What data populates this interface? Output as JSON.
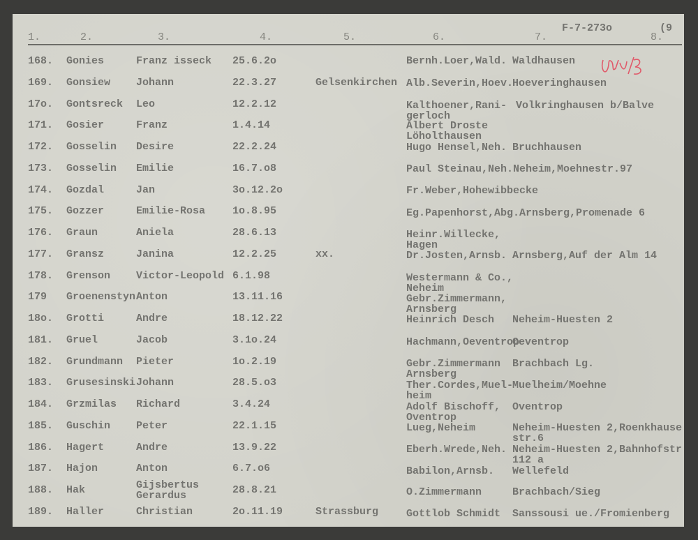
{
  "document_ref": "F-7-273o",
  "page_number": "(9",
  "handwritten_mark": "red initials",
  "column_headers": [
    "1.",
    "2.",
    "3.",
    "4.",
    "5.",
    "6.",
    "7.",
    "8."
  ],
  "rows": [
    {
      "num": "168.",
      "surname": "Gonies",
      "first": "Franz isseck",
      "date": "25.6.2o",
      "place": "",
      "col6": [
        "Bernh.Loer,Wald."
      ],
      "col7": [
        "Waldhausen"
      ]
    },
    {
      "num": "169.",
      "surname": "Gonsiew",
      "first": "Johann",
      "date": "22.3.27",
      "place": "Gelsenkirchen",
      "col6": [
        "Alb.Severin,Hoev."
      ],
      "col7": [
        "Hoeveringhausen"
      ]
    },
    {
      "num": "17o.",
      "surname": "Gontsreck",
      "first": "Leo",
      "date": "12.2.12",
      "place": "",
      "col6": [
        "Kalthoener,Rani-",
        "gerloch"
      ],
      "col7": [
        "Volkringhausen b/Balve"
      ]
    },
    {
      "num": "171.",
      "surname": "Gosier",
      "first": "Franz",
      "date": "1.4.14",
      "place": "",
      "col6": [
        "Albert Droste",
        "Löholthausen"
      ],
      "col7": []
    },
    {
      "num": "172.",
      "surname": "Gosselin",
      "first": "Desire",
      "date": "22.2.24",
      "place": "",
      "col6": [
        "Hugo Hensel,Neh."
      ],
      "col7": [
        "Bruchhausen"
      ]
    },
    {
      "num": "173.",
      "surname": "Gosselin",
      "first": "Emilie",
      "date": "16.7.o8",
      "place": "",
      "col6": [
        "Paul Steinau,Neh.Neheim,Moehnestr.97"
      ],
      "col7": []
    },
    {
      "num": "174.",
      "surname": "Gozdal",
      "first": "Jan",
      "date": "3o.12.2o",
      "place": "",
      "col6": [
        "Fr.Weber,Hohewibbecke"
      ],
      "col7": []
    },
    {
      "num": "175.",
      "surname": "Gozzer",
      "first": "Emilie-Rosa",
      "date": "1o.8.95",
      "place": "",
      "col6": [
        "Eg.Papenhorst,Abg.Arnsberg,Promenade 6"
      ],
      "col7": []
    },
    {
      "num": "176.",
      "surname": "Graun",
      "first": "Aniela",
      "date": "28.6.13",
      "place": "",
      "col6": [
        "Heinr.Willecke,",
        "Hagen"
      ],
      "col7": []
    },
    {
      "num": "177.",
      "surname": "Gransz",
      "first": "Janina",
      "date": "12.2.25",
      "place": "xx.",
      "col6": [
        "Dr.Josten,Arnsb."
      ],
      "col7": [
        "Arnsberg,Auf der Alm 14"
      ]
    },
    {
      "num": "178.",
      "surname": "Grenson",
      "first": "Victor-Leopold",
      "date": "6.1.98",
      "place": "",
      "col6": [
        "Westermann & Co.,",
        "Neheim"
      ],
      "col7": []
    },
    {
      "num": "179",
      "surname": "Groenenstyn",
      "first": "Anton",
      "date": "13.11.16",
      "place": "",
      "col6": [
        "Gebr.Zimmermann,",
        "Arnsberg"
      ],
      "col7": []
    },
    {
      "num": "18o.",
      "surname": "Grotti",
      "first": "Andre",
      "date": "18.12.22",
      "place": "",
      "col6": [
        "Heinrich Desch"
      ],
      "col7": [
        "Neheim-Huesten 2"
      ]
    },
    {
      "num": "181.",
      "surname": "Gruel",
      "first": "Jacob",
      "date": "3.1o.24",
      "place": "",
      "col6": [
        "Hachmann,Oeventrop"
      ],
      "col7": [
        "Oeventrop"
      ]
    },
    {
      "num": "182.",
      "surname": "Grundmann",
      "first": "Pieter",
      "date": "1o.2.19",
      "place": "",
      "col6": [
        "Gebr.Zimmermann",
        "Arnsberg"
      ],
      "col7": [
        "Brachbach Lg."
      ]
    },
    {
      "num": "183.",
      "surname": "Grusesinski",
      "first": "Johann",
      "date": "28.5.o3",
      "place": "",
      "col6": [
        "Ther.Cordes,Muel-",
        "heim"
      ],
      "col7": [
        "Muelheim/Moehne"
      ]
    },
    {
      "num": "184.",
      "surname": "Grzmilas",
      "first": "Richard",
      "date": "3.4.24",
      "place": "",
      "col6": [
        "Adolf Bischoff,",
        "Oventrop"
      ],
      "col7": [
        "Oventrop"
      ]
    },
    {
      "num": "185.",
      "surname": "Guschin",
      "first": "Peter",
      "date": "22.1.15",
      "place": "",
      "col6": [
        "Lueg,Neheim"
      ],
      "col7": [
        "Neheim-Huesten 2,Roenkhause",
        "str.6"
      ]
    },
    {
      "num": "186.",
      "surname": "Hagert",
      "first": "Andre",
      "date": "13.9.22",
      "place": "",
      "col6": [
        "Eberh.Wrede,Neh."
      ],
      "col7": [
        "Neheim-Huesten 2,Bahnhofstr",
        "112 a"
      ]
    },
    {
      "num": "187.",
      "surname": "Hajon",
      "first": "Anton",
      "date": "6.7.o6",
      "place": "",
      "col6": [
        "Babilon,Arnsb."
      ],
      "col7": [
        "Wellefeld"
      ]
    },
    {
      "num": "188.",
      "surname": "Hak",
      "first": "Gijsbertus\nGerardus",
      "date": "28.8.21",
      "place": "",
      "col6": [
        "O.Zimmermann"
      ],
      "col7": [
        "Brachbach/Sieg"
      ]
    },
    {
      "num": "189.",
      "surname": "Haller",
      "first": "Christian",
      "date": "2o.11.19",
      "place": "Strassburg",
      "col6": [
        "Gottlob Schmidt"
      ],
      "col7": [
        "Sanssousi ue./Fromienberg"
      ]
    }
  ]
}
